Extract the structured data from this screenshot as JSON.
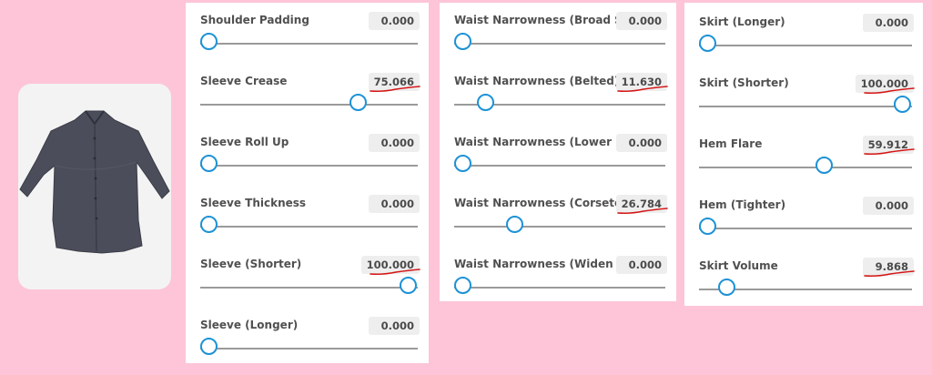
{
  "accent_color": "#1d92d6",
  "annotation_color": "#d41414",
  "preview": {
    "item": "dark-shirt"
  },
  "panels": [
    {
      "sliders": [
        {
          "label": "Shoulder Padding",
          "value": "0.000",
          "level": 0,
          "marked": false
        },
        {
          "label": "Sleeve Crease",
          "value": "75.066",
          "level": 75.066,
          "marked": true
        },
        {
          "label": "Sleeve Roll Up",
          "value": "0.000",
          "level": 0,
          "marked": false
        },
        {
          "label": "Sleeve Thickness",
          "value": "0.000",
          "level": 0,
          "marked": false
        },
        {
          "label": "Sleeve (Shorter)",
          "value": "100.000",
          "level": 100,
          "marked": true
        },
        {
          "label": "Sleeve (Longer)",
          "value": "0.000",
          "level": 0,
          "marked": false
        }
      ]
    },
    {
      "sliders": [
        {
          "label": "Waist Narrowness (Broad Sash)",
          "value": "0.000",
          "level": 0,
          "marked": false
        },
        {
          "label": "Waist Narrowness (Belted)",
          "value": "11.630",
          "level": 11.63,
          "marked": true
        },
        {
          "label": "Waist Narrowness (Lower Back)",
          "value": "0.000",
          "level": 0,
          "marked": false
        },
        {
          "label": "Waist Narrowness (Corseted)",
          "value": "26.784",
          "level": 26.784,
          "marked": true
        },
        {
          "label": "Waist Narrowness (Widen Sag)",
          "value": "0.000",
          "level": 0,
          "marked": false
        }
      ]
    },
    {
      "sliders": [
        {
          "label": "Skirt (Longer)",
          "value": "0.000",
          "level": 0,
          "marked": false
        },
        {
          "label": "Skirt (Shorter)",
          "value": "100.000",
          "level": 100,
          "marked": true
        },
        {
          "label": "Hem Flare",
          "value": "59.912",
          "level": 59.912,
          "marked": true
        },
        {
          "label": "Hem (Tighter)",
          "value": "0.000",
          "level": 0,
          "marked": false
        },
        {
          "label": "Skirt Volume",
          "value": "9.868",
          "level": 9.868,
          "marked": true
        }
      ]
    }
  ]
}
